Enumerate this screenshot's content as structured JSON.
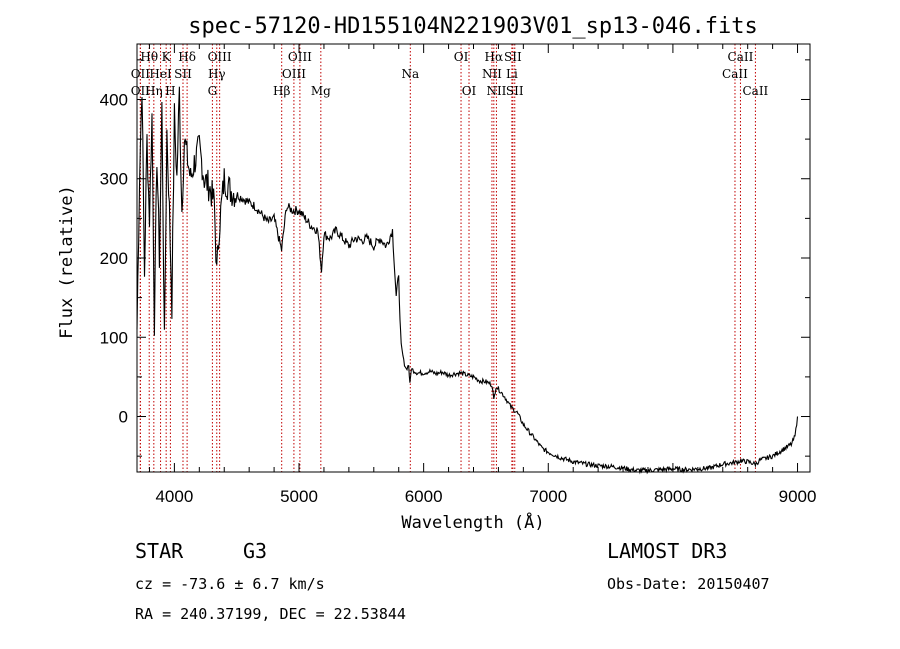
{
  "chart_data": {
    "type": "line",
    "title": "spec-57120-HD155104N221903V01_sp13-046.fits",
    "xlabel": "Wavelength (Å)",
    "ylabel": "Flux (relative)",
    "xlim": [
      3700,
      9100
    ],
    "ylim": [
      -70,
      470
    ],
    "xticks": [
      4000,
      5000,
      6000,
      7000,
      8000,
      9000
    ],
    "yticks": [
      0,
      100,
      200,
      300,
      400
    ],
    "series": [
      {
        "name": "flux",
        "x": [
          3700,
          3720,
          3740,
          3760,
          3780,
          3800,
          3820,
          3840,
          3860,
          3880,
          3900,
          3920,
          3940,
          3960,
          3980,
          4000,
          4020,
          4040,
          4060,
          4080,
          4100,
          4130,
          4160,
          4200,
          4240,
          4280,
          4320,
          4340,
          4360,
          4400,
          4450,
          4500,
          4550,
          4600,
          4650,
          4700,
          4750,
          4800,
          4860,
          4900,
          4950,
          5000,
          5050,
          5100,
          5150,
          5180,
          5200,
          5250,
          5300,
          5350,
          5400,
          5450,
          5500,
          5550,
          5600,
          5650,
          5700,
          5750,
          5780,
          5800,
          5810,
          5820,
          5840,
          5860,
          5880,
          5890,
          5900,
          5920,
          5950,
          6000,
          6050,
          6100,
          6150,
          6200,
          6250,
          6300,
          6350,
          6400,
          6450,
          6500,
          6550,
          6563,
          6580,
          6600,
          6650,
          6700,
          6750,
          6800,
          6850,
          6900,
          6950,
          7000,
          7100,
          7200,
          7300,
          7400,
          7500,
          7600,
          7700,
          7800,
          7900,
          8000,
          8100,
          8200,
          8300,
          8400,
          8498,
          8542,
          8600,
          8662,
          8700,
          8800,
          8900,
          8950,
          8980,
          9000
        ],
        "y": [
          110,
          300,
          420,
          180,
          350,
          250,
          380,
          120,
          330,
          200,
          390,
          90,
          360,
          260,
          140,
          380,
          300,
          410,
          260,
          350,
          330,
          300,
          320,
          340,
          300,
          290,
          270,
          180,
          240,
          300,
          285,
          280,
          275,
          270,
          265,
          255,
          245,
          250,
          210,
          265,
          260,
          260,
          250,
          240,
          235,
          185,
          230,
          225,
          235,
          225,
          215,
          225,
          222,
          225,
          215,
          225,
          215,
          235,
          150,
          180,
          120,
          90,
          70,
          60,
          65,
          40,
          60,
          58,
          55,
          55,
          57,
          54,
          56,
          52,
          54,
          55,
          52,
          50,
          45,
          44,
          40,
          20,
          38,
          35,
          25,
          12,
          5,
          -10,
          -20,
          -30,
          -40,
          -45,
          -52,
          -57,
          -60,
          -62,
          -63,
          -65,
          -68,
          -68,
          -67,
          -66,
          -67,
          -66,
          -65,
          -60,
          -58,
          -56,
          -57,
          -60,
          -55,
          -50,
          -40,
          -35,
          -25,
          0
        ]
      }
    ],
    "spectral_lines": [
      {
        "label": "OII",
        "wavelength": 3727,
        "row": 3
      },
      {
        "label": "Hθ",
        "wavelength": 3798,
        "row": 1
      },
      {
        "label": "Hη",
        "wavelength": 3835,
        "row": 3
      },
      {
        "label": "OII",
        "wavelength": 3727,
        "row": 2
      },
      {
        "label": "K",
        "wavelength": 3934,
        "row": 1
      },
      {
        "label": "HeI",
        "wavelength": 3889,
        "row": 2
      },
      {
        "label": "H",
        "wavelength": 3968,
        "row": 3
      },
      {
        "label": "SII",
        "wavelength": 4069,
        "row": 2
      },
      {
        "label": "Hδ",
        "wavelength": 4102,
        "row": 1
      },
      {
        "label": "OIII",
        "wavelength": 4363,
        "row": 1
      },
      {
        "label": "Hγ",
        "wavelength": 4340,
        "row": 2
      },
      {
        "label": "G",
        "wavelength": 4305,
        "row": 3
      },
      {
        "label": "Hβ",
        "wavelength": 4861,
        "row": 3
      },
      {
        "label": "OIII",
        "wavelength": 5007,
        "row": 1
      },
      {
        "label": "OIII",
        "wavelength": 4959,
        "row": 2
      },
      {
        "label": "Mg",
        "wavelength": 5175,
        "row": 3
      },
      {
        "label": "Na",
        "wavelength": 5893,
        "row": 2
      },
      {
        "label": "OI",
        "wavelength": 6300,
        "row": 1
      },
      {
        "label": "OI",
        "wavelength": 6364,
        "row": 3
      },
      {
        "label": "Hα",
        "wavelength": 6563,
        "row": 1
      },
      {
        "label": "SII",
        "wavelength": 6716,
        "row": 1
      },
      {
        "label": "NII",
        "wavelength": 6548,
        "row": 2
      },
      {
        "label": "Li",
        "wavelength": 6708,
        "row": 2
      },
      {
        "label": "NII",
        "wavelength": 6584,
        "row": 3
      },
      {
        "label": "SII",
        "wavelength": 6731,
        "row": 3
      },
      {
        "label": "CaII",
        "wavelength": 8542,
        "row": 1
      },
      {
        "label": "CaII",
        "wavelength": 8498,
        "row": 2
      },
      {
        "label": "CaII",
        "wavelength": 8662,
        "row": 3
      }
    ]
  },
  "footer": {
    "object_class": "STAR",
    "subclass": "G3",
    "survey": "LAMOST DR3",
    "redshift": "cz = -73.6 ± 6.7 km/s",
    "obs_date": "Obs-Date: 20150407",
    "coords": "RA = 240.37199, DEC =  22.53844"
  },
  "colors": {
    "line_marker": "#c00000",
    "spectrum": "#000000",
    "axes": "#000000"
  }
}
